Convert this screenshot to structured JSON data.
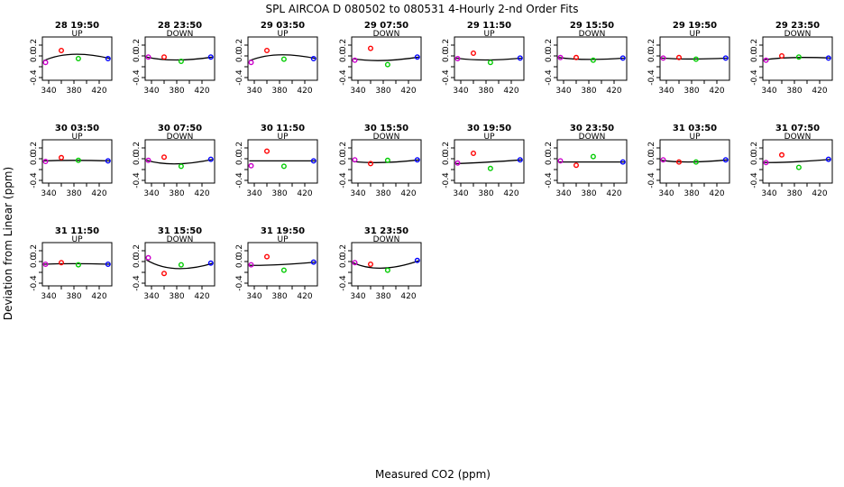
{
  "title": "SPL   AIRCOA D    080502 to 080531   4-Hourly 2-nd Order Fits",
  "xlabel": "Measured CO2 (ppm)",
  "ylabel": "Deviation from Linear (ppm)",
  "colors": {
    "fit": "#000000",
    "frame": "#000000"
  },
  "chart_data": {
    "type": "scatter",
    "xlim": [
      330,
      440
    ],
    "ylim": [
      -0.45,
      0.35
    ],
    "xticks": [
      340,
      360,
      380,
      400,
      420
    ],
    "xtick_labels": [
      "340",
      "",
      "380",
      "",
      "420"
    ],
    "yticks": [
      -0.4,
      -0.2,
      0.0,
      0.2
    ],
    "ytick_labels": [
      "-0.4",
      "",
      "0.0",
      "0.2"
    ],
    "point_x": [
      335,
      360,
      387,
      434
    ],
    "point_colors": [
      "#cc00cc",
      "#ff0000",
      "#00cc00",
      "#0000ff"
    ],
    "panels": [
      {
        "title": "28 19:50",
        "label": "UP",
        "points": [
          -0.12,
          0.1,
          -0.05,
          -0.05
        ],
        "fit": [
          -0.09,
          0.03,
          0.03,
          -0.05
        ]
      },
      {
        "title": "28 23:50",
        "label": "DOWN",
        "points": [
          -0.02,
          -0.02,
          -0.1,
          -0.02
        ],
        "fit": [
          -0.02,
          -0.06,
          -0.08,
          -0.02
        ]
      },
      {
        "title": "29 03:50",
        "label": "UP",
        "points": [
          -0.12,
          0.1,
          -0.06,
          -0.05
        ],
        "fit": [
          -0.09,
          0.02,
          0.02,
          -0.05
        ]
      },
      {
        "title": "29 07:50",
        "label": "DOWN",
        "points": [
          -0.08,
          0.14,
          -0.16,
          -0.02
        ],
        "fit": [
          -0.05,
          -0.07,
          -0.09,
          -0.02
        ]
      },
      {
        "title": "29 11:50",
        "label": "UP",
        "points": [
          -0.05,
          0.05,
          -0.12,
          -0.04
        ],
        "fit": [
          -0.04,
          -0.06,
          -0.08,
          -0.04
        ]
      },
      {
        "title": "29 15:50",
        "label": "DOWN",
        "points": [
          -0.03,
          -0.03,
          -0.08,
          -0.04
        ],
        "fit": [
          -0.03,
          -0.05,
          -0.07,
          -0.04
        ]
      },
      {
        "title": "29 19:50",
        "label": "UP",
        "points": [
          -0.04,
          -0.03,
          -0.06,
          -0.04
        ],
        "fit": [
          -0.04,
          -0.05,
          -0.06,
          -0.04
        ]
      },
      {
        "title": "29 23:50",
        "label": "DOWN",
        "points": [
          -0.08,
          0.0,
          -0.02,
          -0.04
        ],
        "fit": [
          -0.07,
          -0.03,
          -0.03,
          -0.04
        ]
      },
      {
        "title": "30 03:50",
        "label": "UP",
        "points": [
          -0.05,
          0.02,
          -0.03,
          -0.04
        ],
        "fit": [
          -0.04,
          -0.03,
          -0.03,
          -0.04
        ]
      },
      {
        "title": "30 07:50",
        "label": "DOWN",
        "points": [
          -0.03,
          0.03,
          -0.14,
          -0.01
        ],
        "fit": [
          -0.03,
          -0.08,
          -0.1,
          -0.01
        ]
      },
      {
        "title": "30 11:50",
        "label": "UP",
        "points": [
          -0.13,
          0.14,
          -0.14,
          -0.04
        ],
        "fit": [
          -0.04,
          -0.04,
          -0.04,
          -0.04
        ]
      },
      {
        "title": "30 15:50",
        "label": "DOWN",
        "points": [
          -0.02,
          -0.09,
          -0.03,
          -0.02
        ],
        "fit": [
          -0.05,
          -0.07,
          -0.07,
          -0.02
        ]
      },
      {
        "title": "30 19:50",
        "label": "UP",
        "points": [
          -0.08,
          0.1,
          -0.18,
          -0.02
        ],
        "fit": [
          -0.09,
          -0.05,
          -0.07,
          -0.02
        ]
      },
      {
        "title": "30 23:50",
        "label": "DOWN",
        "points": [
          -0.04,
          -0.12,
          0.04,
          -0.06
        ],
        "fit": [
          -0.06,
          -0.06,
          -0.06,
          -0.06
        ]
      },
      {
        "title": "31 03:50",
        "label": "UP",
        "points": [
          -0.02,
          -0.06,
          -0.06,
          -0.02
        ],
        "fit": [
          -0.03,
          -0.06,
          -0.06,
          -0.02
        ]
      },
      {
        "title": "31 07:50",
        "label": "DOWN",
        "points": [
          -0.07,
          0.07,
          -0.16,
          -0.01
        ],
        "fit": [
          -0.07,
          -0.05,
          -0.06,
          -0.01
        ]
      },
      {
        "title": "31 11:50",
        "label": "UP",
        "points": [
          -0.05,
          -0.02,
          -0.06,
          -0.05
        ],
        "fit": [
          -0.05,
          -0.04,
          -0.04,
          -0.05
        ]
      },
      {
        "title": "31 15:50",
        "label": "DOWN",
        "points": [
          0.07,
          -0.22,
          -0.06,
          -0.03
        ],
        "fit": [
          0.03,
          -0.1,
          -0.14,
          -0.03
        ]
      },
      {
        "title": "31 19:50",
        "label": "UP",
        "points": [
          -0.06,
          0.09,
          -0.16,
          -0.01
        ],
        "fit": [
          -0.07,
          -0.05,
          -0.06,
          -0.01
        ]
      },
      {
        "title": "31 23:50",
        "label": "DOWN",
        "points": [
          -0.02,
          -0.05,
          -0.16,
          0.02
        ],
        "fit": [
          -0.02,
          -0.1,
          -0.13,
          0.02
        ]
      }
    ]
  }
}
